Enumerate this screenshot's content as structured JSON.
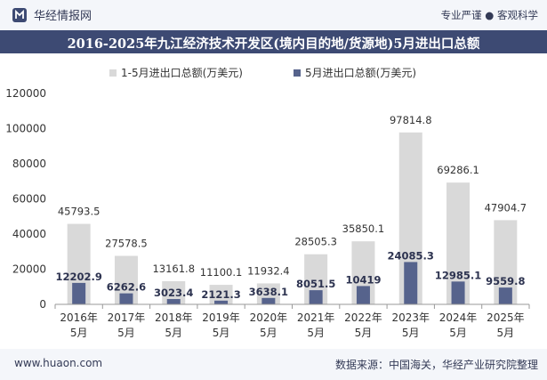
{
  "header": {
    "brand": "华经情报网",
    "tagline": "专业严谨 ● 客观科学"
  },
  "title": "2016-2025年九江经济技术开发区(境内目的地/货源地)5月进出口总额",
  "footer": {
    "website": "www.huaon.com",
    "source": "数据来源：中国海关，华经产业研究院整理"
  },
  "colors": {
    "header_bg": "#f4f6fa",
    "title_bg": "#3d4a73",
    "series1": "#d9d9d9",
    "series2": "#56638c"
  },
  "chart_data": {
    "type": "bar",
    "categories": [
      {
        "year": "2016年",
        "month": "5月"
      },
      {
        "year": "2017年",
        "month": "5月"
      },
      {
        "year": "2018年",
        "month": "5月"
      },
      {
        "year": "2019年",
        "month": "5月"
      },
      {
        "year": "2020年",
        "month": "5月"
      },
      {
        "year": "2021年",
        "month": "5月"
      },
      {
        "year": "2022年",
        "month": "5月"
      },
      {
        "year": "2023年",
        "month": "5月"
      },
      {
        "year": "2024年",
        "month": "5月"
      },
      {
        "year": "2025年",
        "month": "5月"
      }
    ],
    "series": [
      {
        "name": "1-5月进出口总额(万美元)",
        "values": [
          45793.5,
          27578.5,
          13161.8,
          11100.1,
          11932.4,
          28505.3,
          35850.1,
          97814.8,
          69286.1,
          47904.7
        ],
        "labels": [
          "45793.5",
          "27578.5",
          "13161.8",
          "11100.1",
          "11932.4",
          "28505.3",
          "35850.1",
          "97814.8",
          "69286.1",
          "47904.7"
        ]
      },
      {
        "name": "5月进出口总额(万美元)",
        "values": [
          12202.9,
          6262.6,
          3023.4,
          2121.3,
          3638.1,
          8051.5,
          10419,
          24085.3,
          12985.1,
          9559.8
        ],
        "labels": [
          "12202.9",
          "6262.6",
          "3023.4",
          "2121.3",
          "3638.1",
          "8051.5",
          "10419",
          "24085.3",
          "12985.1",
          "9559.8"
        ]
      }
    ],
    "yticks": [
      "0",
      "20000",
      "40000",
      "60000",
      "80000",
      "100000",
      "120000"
    ],
    "ylim": [
      0,
      120000
    ],
    "legend_position": "top-center",
    "grid": false
  }
}
